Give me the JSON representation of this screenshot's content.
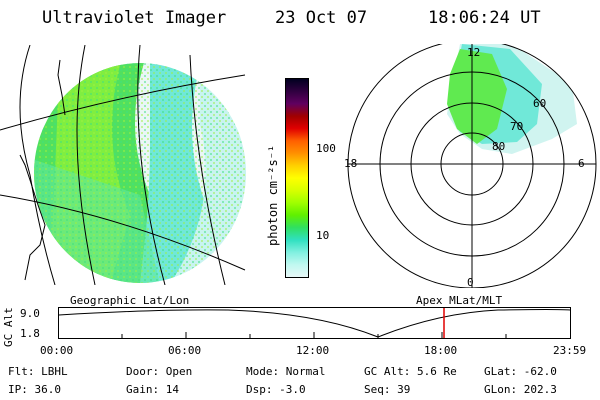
{
  "header": {
    "instrument": "Ultraviolet Imager",
    "date": "23 Oct 07",
    "time": "18:06:24 UT"
  },
  "colorbar": {
    "label": "photon cm⁻²s⁻¹",
    "ticks": [
      "100",
      "10"
    ],
    "colors": [
      "#000020",
      "#300040",
      "#600060",
      "#a00000",
      "#e00000",
      "#ff6000",
      "#ff9000",
      "#ffd000",
      "#ffff00",
      "#d8ff00",
      "#a0ff00",
      "#60f000",
      "#30e060",
      "#30e0c0",
      "#80f0e0",
      "#c0f8f0",
      "#e8f8f8"
    ]
  },
  "polar": {
    "mlt_labels": {
      "top": "12",
      "left": "18",
      "right": "6",
      "bottom": "0"
    },
    "lat_labels": [
      "60",
      "70",
      "80"
    ]
  },
  "timeline": {
    "left_label": "Geographic Lat/Lon",
    "right_label": "Apex MLat/MLT",
    "axis_title": "GC Alt",
    "y_ticks": [
      "9.0",
      "1.8"
    ],
    "x_ticks": [
      "00:00",
      "06:00",
      "12:00",
      "18:00",
      "23:59"
    ]
  },
  "info": {
    "filter": "Flt: LBHL",
    "ip": "IP: 36.0",
    "door": "Door: Open",
    "gain": "Gain: 14",
    "mode": "Mode: Normal",
    "dsp": "Dsp:   -3.0",
    "gc_alt": "GC Alt: 5.6 Re",
    "seq": "Seq: 39",
    "glat": "GLat: -62.0",
    "glon": "GLon: 202.3"
  }
}
